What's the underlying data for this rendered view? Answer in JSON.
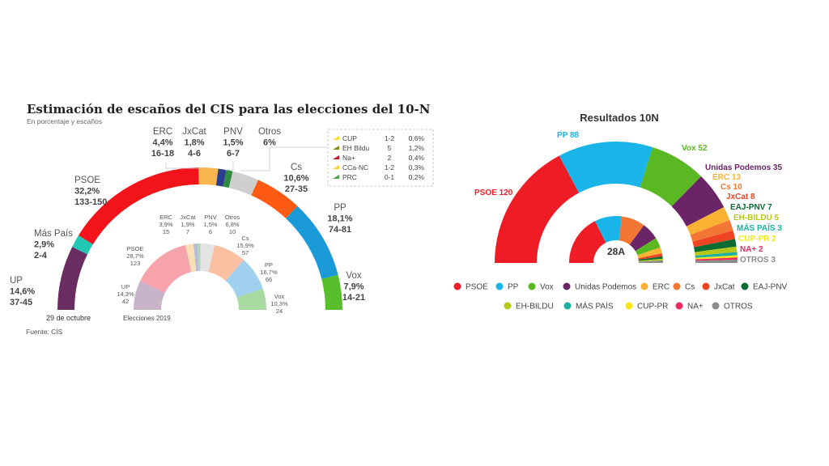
{
  "left_chart": {
    "title": "Estimación de escaños del CIS para las elecciones del 10-N",
    "subtitle": "En porcentaje y escaños",
    "source": "Fuente: CIS",
    "outer_label": "29 de octubre",
    "inner_label": "Elecciones 2019"
  },
  "right_chart": {
    "title": "Resultados 10N",
    "center_label": "28A"
  },
  "chart_data": [
    {
      "type": "semicircle-parliament",
      "title": "Estimación de escaños del CIS para las elecciones del 10-N",
      "subtitle": "En porcentaje y escaños",
      "series": [
        {
          "name": "29 de octubre",
          "parties": [
            {
              "name": "UP",
              "pct": "14,6%",
              "seats": "37-45",
              "share": 14.6,
              "color": "#6a2d62"
            },
            {
              "name": "Más País",
              "pct": "2,9%",
              "seats": "2-4",
              "share": 2.9,
              "color": "#22c8b4"
            },
            {
              "name": "PSOE",
              "pct": "32,2%",
              "seats": "133-150",
              "share": 32.2,
              "color": "#f2141a"
            },
            {
              "name": "ERC",
              "pct": "4,4%",
              "seats": "16-18",
              "share": 4.4,
              "color": "#f7b64e"
            },
            {
              "name": "JxCat",
              "pct": "1,8%",
              "seats": "4-6",
              "share": 1.8,
              "color": "#2a3d8f"
            },
            {
              "name": "PNV",
              "pct": "1,5%",
              "seats": "6-7",
              "share": 1.5,
              "color": "#2e8b3f"
            },
            {
              "name": "Otros",
              "pct": "6%",
              "seats": "",
              "share": 6.0,
              "color": "#cfcfcf"
            },
            {
              "name": "Cs",
              "pct": "10,6%",
              "seats": "27-35",
              "share": 10.6,
              "color": "#ff5a14"
            },
            {
              "name": "PP",
              "pct": "18,1%",
              "seats": "74-81",
              "share": 18.1,
              "color": "#1a9ad6"
            },
            {
              "name": "Vox",
              "pct": "7,9%",
              "seats": "14-21",
              "share": 7.9,
              "color": "#56bf2b"
            }
          ],
          "otros_detail": [
            {
              "name": "CUP",
              "seats": "1-2",
              "pct": "0,6%",
              "color": "#f7e430"
            },
            {
              "name": "EH Bildu",
              "seats": "5",
              "pct": "1,2%",
              "color": "#8a8a1a"
            },
            {
              "name": "Na+",
              "seats": "2",
              "pct": "0,4%",
              "color": "#c0142a"
            },
            {
              "name": "CCa-NC",
              "seats": "1-2",
              "pct": "0,3%",
              "color": "#f7d23a"
            },
            {
              "name": "PRC",
              "seats": "0-1",
              "pct": "0,2%",
              "color": "#4aa84a"
            }
          ]
        },
        {
          "name": "Elecciones 2019",
          "parties": [
            {
              "name": "UP",
              "pct": "14,3%",
              "seats": "42",
              "share": 14.3,
              "color": "#c7b4c8"
            },
            {
              "name": "PSOE",
              "pct": "28,7%",
              "seats": "123",
              "share": 28.7,
              "color": "#f7a3ab"
            },
            {
              "name": "ERC",
              "pct": "3,9%",
              "seats": "15",
              "share": 3.9,
              "color": "#f9dfb5"
            },
            {
              "name": "JxCat",
              "pct": "1,9%",
              "seats": "7",
              "share": 1.9,
              "color": "#b7bdd9"
            },
            {
              "name": "PNV",
              "pct": "1,5%",
              "seats": "6",
              "share": 1.5,
              "color": "#b3d6b9"
            },
            {
              "name": "Otros",
              "pct": "6,8%",
              "seats": "10",
              "share": 6.8,
              "color": "#e3e3e3"
            },
            {
              "name": "Cs",
              "pct": "15,9%",
              "seats": "57",
              "share": 15.9,
              "color": "#fbbfa2"
            },
            {
              "name": "PP",
              "pct": "16,7%",
              "seats": "66",
              "share": 16.7,
              "color": "#9fd0ee"
            },
            {
              "name": "Vox",
              "pct": "10,3%",
              "seats": "24",
              "share": 10.3,
              "color": "#a8d9a0"
            }
          ]
        }
      ]
    },
    {
      "type": "semicircle-parliament",
      "title": "Resultados 10N",
      "series": [
        {
          "name": "10N",
          "parties": [
            {
              "name": "PSOE",
              "label": "PSOE 120",
              "seats": 120,
              "color": "#ee1c25"
            },
            {
              "name": "PP",
              "label": "PP 88",
              "seats": 88,
              "color": "#19b5e8"
            },
            {
              "name": "Vox",
              "label": "Vox 52",
              "seats": 52,
              "color": "#5ab923"
            },
            {
              "name": "Unidas Podemos",
              "label": "Unidas Podemos 35",
              "seats": 35,
              "color": "#6b2567"
            },
            {
              "name": "ERC",
              "label": "ERC 13",
              "seats": 13,
              "color": "#f9b233"
            },
            {
              "name": "Cs",
              "label": "Cs 10",
              "seats": 10,
              "color": "#f47635"
            },
            {
              "name": "JxCat",
              "label": "JxCat 8",
              "seats": 8,
              "color": "#ee4424"
            },
            {
              "name": "EAJ-PNV",
              "label": "EAJ-PNV 7",
              "seats": 7,
              "color": "#0c6b33"
            },
            {
              "name": "EH-BILDU",
              "label": "EH-BILDU 5",
              "seats": 5,
              "color": "#b5c819"
            },
            {
              "name": "MÁS PAÍS",
              "label": "MÁS PAÍS 3",
              "seats": 3,
              "color": "#19b2a3"
            },
            {
              "name": "CUP-PR",
              "label": "CUP-PR 2",
              "seats": 2,
              "color": "#f5e614"
            },
            {
              "name": "NA+",
              "label": "NA+ 2",
              "seats": 2,
              "color": "#ee2b5f"
            },
            {
              "name": "OTROS",
              "label": "OTROS 3",
              "seats": 3,
              "color": "#8c8c8c"
            }
          ]
        },
        {
          "name": "28A",
          "parties": [
            {
              "name": "PSOE",
              "seats": 123,
              "color": "#ee1c25"
            },
            {
              "name": "PP",
              "seats": 66,
              "color": "#19b5e8"
            },
            {
              "name": "Cs",
              "seats": 57,
              "color": "#f47635"
            },
            {
              "name": "Unidas Podemos",
              "seats": 42,
              "color": "#6b2567"
            },
            {
              "name": "Vox",
              "seats": 24,
              "color": "#5ab923"
            },
            {
              "name": "ERC",
              "seats": 15,
              "color": "#f9b233"
            },
            {
              "name": "JxCat",
              "seats": 7,
              "color": "#ee4424"
            },
            {
              "name": "EAJ-PNV",
              "seats": 6,
              "color": "#0c6b33"
            },
            {
              "name": "EH-BILDU",
              "seats": 4,
              "color": "#b5c819"
            },
            {
              "name": "OTROS",
              "seats": 6,
              "color": "#8c8c8c"
            }
          ]
        }
      ],
      "legend": [
        {
          "name": "PSOE",
          "color": "#ee1c25"
        },
        {
          "name": "PP",
          "color": "#19b5e8"
        },
        {
          "name": "Vox",
          "color": "#5ab923"
        },
        {
          "name": "Unidas Podemos",
          "color": "#6b2567"
        },
        {
          "name": "ERC",
          "color": "#f9b233"
        },
        {
          "name": "Cs",
          "color": "#f47635"
        },
        {
          "name": "JxCat",
          "color": "#ee4424"
        },
        {
          "name": "EAJ-PNV",
          "color": "#0c6b33"
        },
        {
          "name": "EH-BILDU",
          "color": "#b5c819"
        },
        {
          "name": "MÁS PAÍS",
          "color": "#19b2a3"
        },
        {
          "name": "CUP-PR",
          "color": "#f5e614"
        },
        {
          "name": "NA+",
          "color": "#ee2b5f"
        },
        {
          "name": "OTROS",
          "color": "#8c8c8c"
        }
      ]
    }
  ]
}
